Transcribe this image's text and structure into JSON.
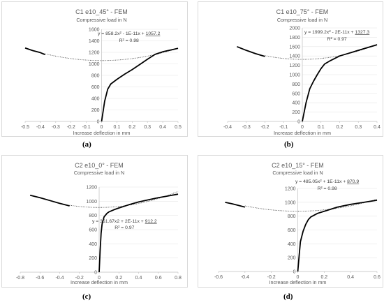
{
  "panel_labels": [
    "(a)",
    "(b)",
    "(c)",
    "(d)"
  ],
  "chart_data": [
    {
      "type": "scatter",
      "title": "C1 e10_45° - FEM",
      "ylabel": "Compressive load in N",
      "xlabel": "Increase deflection in mm",
      "xlim": [
        -0.5,
        0.5
      ],
      "ylim": [
        0,
        1600
      ],
      "xticks": [
        "-0.5",
        "-0.4",
        "-0.3",
        "-0.2",
        "-0.1",
        "0",
        "0.1",
        "0.2",
        "0.3",
        "0.4",
        "0.5"
      ],
      "yticks": [
        "0",
        "200",
        "400",
        "600",
        "800",
        "1000",
        "1200",
        "1400",
        "1600"
      ],
      "trend_eq_prefix": "y = 858.2x² - 1E-11x + ",
      "trend_eq_const": "1057.2",
      "r2": "R² = 0.98",
      "trend": {
        "a": 858.2,
        "c": 1057.2,
        "x_range": [
          -0.4,
          0.5
        ]
      },
      "series_neg": {
        "x": [
          -0.5,
          -0.45,
          -0.4,
          -0.37
        ],
        "y": [
          1276,
          1230,
          1195,
          1160
        ]
      },
      "series_pos": {
        "x": [
          0,
          0.02,
          0.04,
          0.06,
          0.1,
          0.15,
          0.2,
          0.25,
          0.3,
          0.35,
          0.4,
          0.45,
          0.5
        ],
        "y": [
          0,
          350,
          560,
          650,
          730,
          820,
          900,
          990,
          1080,
          1165,
          1210,
          1240,
          1270
        ]
      }
    },
    {
      "type": "scatter",
      "title": "C1 e10_75° - FEM",
      "ylabel": "Compressive load in N",
      "xlabel": "Increase deflection in mm",
      "xlim": [
        -0.4,
        0.4
      ],
      "ylim": [
        0,
        2000
      ],
      "xticks": [
        "-0.4",
        "-0.3",
        "-0.2",
        "-0.1",
        "0",
        "0.1",
        "0.2",
        "0.3",
        "0.4"
      ],
      "yticks": [
        "0",
        "200",
        "400",
        "600",
        "800",
        "1000",
        "1200",
        "1400",
        "1600",
        "1800",
        "2000"
      ],
      "trend_eq_prefix": "y = 1999.2x² - 2E-11x + ",
      "trend_eq_const": "1327.3",
      "r2": "R² = 0.97",
      "trend": {
        "a": 1999.2,
        "c": 1327.3,
        "x_range": [
          -0.2,
          0.4
        ]
      },
      "series_neg": {
        "x": [
          -0.35,
          -0.3,
          -0.25,
          -0.2
        ],
        "y": [
          1600,
          1520,
          1450,
          1390
        ]
      },
      "series_pos": {
        "x": [
          0,
          0.02,
          0.04,
          0.06,
          0.08,
          0.1,
          0.12,
          0.15,
          0.2,
          0.25,
          0.3,
          0.35,
          0.4
        ],
        "y": [
          0,
          400,
          700,
          860,
          1000,
          1130,
          1230,
          1300,
          1400,
          1460,
          1520,
          1580,
          1640
        ]
      }
    },
    {
      "type": "scatter",
      "title": "C2 e10_0° - FEM",
      "ylabel": "Compressive load in N",
      "xlabel": "Increase deflection in mm",
      "xlim": [
        -0.8,
        0.8
      ],
      "ylim": [
        0,
        1200
      ],
      "xticks": [
        "-0.8",
        "-0.6",
        "-0.4",
        "-0.2",
        "0",
        "0.2",
        "0.4",
        "0.6",
        "0.8"
      ],
      "yticks": [
        "0",
        "200",
        "400",
        "600",
        "800",
        "1000",
        "1200"
      ],
      "trend_eq_prefix": "y = 351.67x2 + 2E-11x + ",
      "trend_eq_const": "912.2",
      "r2": "R² = 0.97",
      "trend": {
        "a": 351.67,
        "c": 912.2,
        "x_range": [
          -0.3,
          0.8
        ]
      },
      "series_neg": {
        "x": [
          -0.7,
          -0.6,
          -0.5,
          -0.4,
          -0.3
        ],
        "y": [
          1085,
          1050,
          1010,
          970,
          935
        ]
      },
      "series_pos": {
        "x": [
          0,
          0.01,
          0.02,
          0.03,
          0.05,
          0.08,
          0.1,
          0.15,
          0.2,
          0.3,
          0.4,
          0.5,
          0.6,
          0.7,
          0.8
        ],
        "y": [
          0,
          300,
          550,
          680,
          780,
          830,
          850,
          880,
          905,
          950,
          990,
          1020,
          1050,
          1075,
          1100
        ]
      }
    },
    {
      "type": "scatter",
      "title": "C2 e10_15° - FEM",
      "ylabel": "Compressive load in N",
      "xlabel": "Increase deflection in mm",
      "xlim": [
        -0.6,
        0.6
      ],
      "ylim": [
        0,
        1200
      ],
      "xticks": [
        "-0.6",
        "-0.4",
        "-0.2",
        "0",
        "0.2",
        "0.4",
        "0.6"
      ],
      "yticks": [
        "0",
        "200",
        "400",
        "600",
        "800",
        "1000",
        "1200"
      ],
      "trend_eq_prefix": "y = 485.05x² + 1E-11x + ",
      "trend_eq_const": "870.9",
      "r2": "R² = 0.98",
      "trend": {
        "a": 485.05,
        "c": 870.9,
        "x_range": [
          -0.4,
          0.6
        ]
      },
      "series_neg": {
        "x": [
          -0.55,
          -0.5,
          -0.45,
          -0.4
        ],
        "y": [
          1000,
          980,
          955,
          930
        ]
      },
      "series_pos": {
        "x": [
          0,
          0.01,
          0.02,
          0.04,
          0.06,
          0.08,
          0.1,
          0.15,
          0.2,
          0.25,
          0.3,
          0.4,
          0.5,
          0.6
        ],
        "y": [
          0,
          220,
          430,
          580,
          680,
          750,
          790,
          840,
          870,
          900,
          930,
          970,
          1000,
          1030
        ]
      }
    }
  ]
}
